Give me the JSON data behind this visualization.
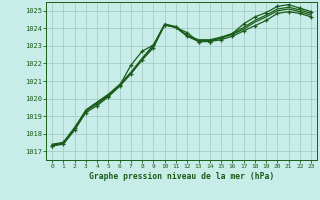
{
  "background_color": "#c8ece8",
  "grid_color": "#a0c8c4",
  "line_color": "#1a5c1a",
  "title": "Graphe pression niveau de la mer (hPa)",
  "xlim": [
    -0.5,
    23.5
  ],
  "ylim": [
    1016.5,
    1025.5
  ],
  "yticks": [
    1017,
    1018,
    1019,
    1020,
    1021,
    1022,
    1023,
    1024,
    1025
  ],
  "xticks": [
    0,
    1,
    2,
    3,
    4,
    5,
    6,
    7,
    8,
    9,
    10,
    11,
    12,
    13,
    14,
    15,
    16,
    17,
    18,
    19,
    20,
    21,
    22,
    23
  ],
  "series": [
    {
      "y": [
        1017.3,
        1017.4,
        1018.2,
        1019.2,
        1019.6,
        1020.1,
        1020.7,
        1021.4,
        1022.2,
        1022.9,
        1024.2,
        1024.05,
        1023.55,
        1023.25,
        1023.25,
        1023.35,
        1023.55,
        1023.85,
        1024.15,
        1024.45,
        1024.85,
        1024.95,
        1024.85,
        1024.65
      ],
      "marker": "x",
      "lw": 0.9
    },
    {
      "y": [
        1017.35,
        1017.45,
        1018.25,
        1019.3,
        1019.75,
        1020.2,
        1020.75,
        1021.45,
        1022.25,
        1023.0,
        1024.2,
        1024.05,
        1023.55,
        1023.3,
        1023.3,
        1023.45,
        1023.65,
        1023.95,
        1024.35,
        1024.65,
        1025.0,
        1025.1,
        1024.95,
        1024.75
      ],
      "marker": null,
      "lw": 0.9
    },
    {
      "y": [
        1017.4,
        1017.5,
        1018.3,
        1019.35,
        1019.8,
        1020.25,
        1020.8,
        1021.5,
        1022.3,
        1023.05,
        1024.25,
        1024.1,
        1023.6,
        1023.35,
        1023.35,
        1023.5,
        1023.7,
        1024.05,
        1024.45,
        1024.75,
        1025.1,
        1025.2,
        1025.05,
        1024.85
      ],
      "marker": null,
      "lw": 0.9
    },
    {
      "y": [
        1017.3,
        1017.5,
        1018.35,
        1019.3,
        1019.7,
        1020.15,
        1020.75,
        1021.9,
        1022.7,
        1023.05,
        1024.2,
        1024.05,
        1023.75,
        1023.25,
        1023.25,
        1023.45,
        1023.7,
        1024.25,
        1024.65,
        1024.9,
        1025.25,
        1025.35,
        1025.15,
        1024.95
      ],
      "marker": "x",
      "lw": 0.9
    }
  ]
}
